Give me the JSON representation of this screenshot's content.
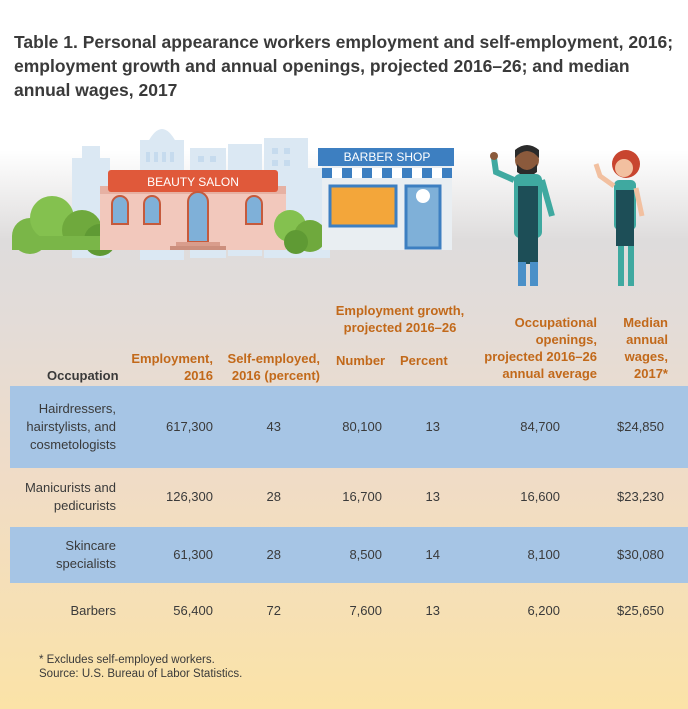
{
  "title": "Table 1. Personal appearance workers employment and self-employment, 2016; employment growth and annual openings, projected 2016–26; and median annual wages, 2017",
  "illustration": {
    "beauty_salon_sign": "BEAUTY SALON",
    "barber_shop_sign": "BARBER SHOP"
  },
  "columns": {
    "occupation": "Occupation",
    "employment": [
      "Employment,",
      "2016"
    ],
    "self_employed": [
      "Self-employed,",
      "2016 (percent)"
    ],
    "growth_group": [
      "Employment growth,",
      "projected 2016–26"
    ],
    "growth_number": "Number",
    "growth_percent": "Percent",
    "openings": [
      "Occupational",
      "openings,",
      "projected 2016–26",
      "annual average"
    ],
    "wages": [
      "Median",
      "annual",
      "wages,",
      "2017*"
    ]
  },
  "rows": [
    {
      "occupation": [
        "Hairdressers,",
        "hairstylists, and",
        "cosmetologists"
      ],
      "employment": "617,300",
      "self_employed": "43",
      "growth_number": "80,100",
      "growth_percent": "13",
      "openings": "84,700",
      "wages": "$24,850"
    },
    {
      "occupation": [
        "Manicurists and",
        "pedicurists"
      ],
      "employment": "126,300",
      "self_employed": "28",
      "growth_number": "16,700",
      "growth_percent": "13",
      "openings": "16,600",
      "wages": "$23,230"
    },
    {
      "occupation": [
        "Skincare",
        "specialists"
      ],
      "employment": "61,300",
      "self_employed": "28",
      "growth_number": "8,500",
      "growth_percent": "14",
      "openings": "8,100",
      "wages": "$30,080"
    },
    {
      "occupation": [
        "Barbers"
      ],
      "employment": "56,400",
      "self_employed": "72",
      "growth_number": "7,600",
      "growth_percent": "13",
      "openings": "6,200",
      "wages": "$25,650"
    }
  ],
  "footnotes": {
    "note": "* Excludes self-employed workers.",
    "source": "Source: U.S. Bureau of Labor Statistics."
  },
  "colors": {
    "header_orange": "#c2691a",
    "band_blue": "#a6c5e5",
    "text": "#3a3a3a"
  }
}
